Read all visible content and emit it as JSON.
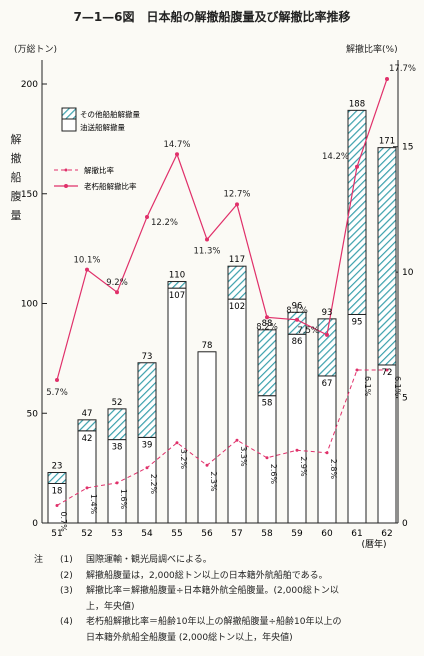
{
  "chart_data": {
    "type": "bar",
    "title": "7—1—6図　日本船の解撤船腹量及び解撤比率推移",
    "x": [
      "51",
      "52",
      "53",
      "54",
      "55",
      "56",
      "57",
      "58",
      "59",
      "60",
      "61",
      "62"
    ],
    "xlabel": "(暦年)",
    "ylabel_left": "解撤船腹量",
    "left_unit": "(万総トン)",
    "right_unit": "解撤比率(%)",
    "ylim_left": [
      0,
      200
    ],
    "ylim_right": [
      0,
      17.5
    ],
    "yticks_left": [
      "0",
      "50",
      "100",
      "150",
      "200"
    ],
    "yticks_right": [
      "0",
      "5",
      "10",
      "15"
    ],
    "series": [
      {
        "name": "油送船解撤量",
        "kind": "bar",
        "values": [
          18,
          42,
          38,
          39,
          107,
          78,
          102,
          58,
          86,
          67,
          95,
          72
        ],
        "labels": [
          "18",
          "42",
          "38",
          "39",
          "107",
          "",
          "102",
          "58",
          "86",
          "67",
          "95",
          "72"
        ]
      },
      {
        "name": "その他船舶解撤量",
        "kind": "bar-stack",
        "values": [
          5,
          5,
          14,
          34,
          3,
          0,
          15,
          30,
          10,
          26,
          93,
          99
        ]
      },
      {
        "name": "解撤比率",
        "kind": "line-dashed",
        "values": [
          0.7,
          1.4,
          1.6,
          2.2,
          3.2,
          2.3,
          3.3,
          2.6,
          2.9,
          2.8,
          6.1,
          6.1
        ],
        "labels": [
          "0.7%",
          "1.4%",
          "1.6%",
          "2.2%",
          "3.2%",
          "2.3%",
          "3.3%",
          "2.6%",
          "2.9%",
          "2.8%",
          "6.1%",
          "6.1%"
        ]
      },
      {
        "name": "老朽船解撤比率",
        "kind": "line",
        "values": [
          5.7,
          10.1,
          9.2,
          12.2,
          14.7,
          11.3,
          12.7,
          8.2,
          8.1,
          7.5,
          14.2,
          17.7
        ],
        "labels": [
          "5.7%",
          "10.1%",
          "9.2%",
          "12.2%",
          "14.7%",
          "11.3%",
          "12.7%",
          "8.2%",
          "8.1%",
          "7.5%",
          "14.2%",
          "17.7%"
        ]
      }
    ],
    "totals": [
      "23",
      "47",
      "52",
      "73",
      "110",
      "78",
      "117",
      "88",
      "96",
      "93",
      "188",
      "171"
    ],
    "legend_position": "upper-left",
    "grid": false,
    "colors": {
      "bar_fill": "#ffffff",
      "hatch": "#3aa0ac",
      "line": "#e0306a",
      "axis": "#222222"
    }
  },
  "notes": {
    "label": "注",
    "items": [
      {
        "num": "(1)",
        "text": "国際運輸・観光局調べによる。"
      },
      {
        "num": "(2)",
        "text": "解撤船腹量は，2,000総トン以上の日本籍外航船舶である。"
      },
      {
        "num": "(3)",
        "text": "解撤比率＝解撤船腹量÷日本籍外航全船腹量。(2,000総トン以",
        "cont": "上，年央値)"
      },
      {
        "num": "(4)",
        "text": "老朽船解撤比率＝船齢10年以上の解撤船腹量÷船齢10年以上の",
        "cont": "日本籍外航船全船腹量 (2,000総トン以上，年央値)"
      }
    ]
  }
}
